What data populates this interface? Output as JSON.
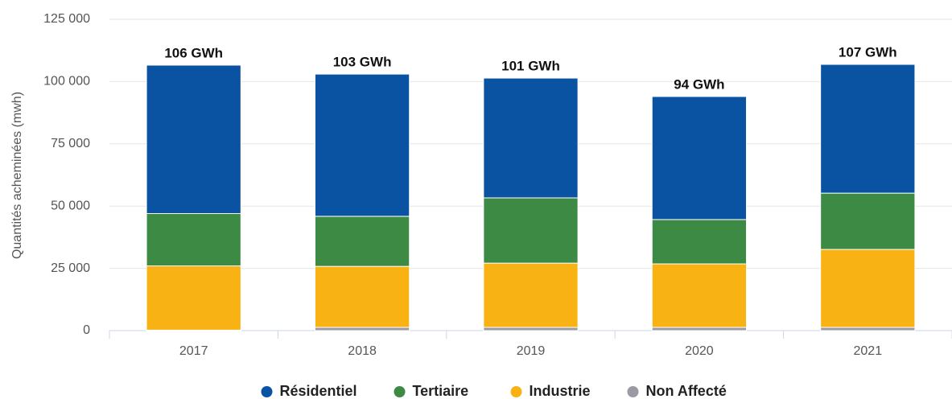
{
  "chart_data": {
    "type": "stacked_bar",
    "ylabel": "Quantités acheminées (mwh)",
    "categories": [
      "2017",
      "2018",
      "2019",
      "2020",
      "2021"
    ],
    "series": [
      {
        "name": "Non Affecté",
        "color": "#9a9aa5",
        "values": [
          200,
          1300,
          1300,
          1300,
          1300
        ]
      },
      {
        "name": "Industrie",
        "color": "#f9b214",
        "values": [
          25800,
          24500,
          25800,
          25500,
          31300
        ]
      },
      {
        "name": "Tertiaire",
        "color": "#3d8a45",
        "values": [
          21000,
          20100,
          26200,
          17800,
          22600
        ]
      },
      {
        "name": "Résidentiel",
        "color": "#0a53a3",
        "values": [
          59600,
          57100,
          48100,
          49400,
          51700
        ]
      }
    ],
    "legend_order": [
      3,
      2,
      1,
      0
    ],
    "total_labels": [
      "106 GWh",
      "103 GWh",
      "101 GWh",
      "94 GWh",
      "107 GWh"
    ],
    "ylim": [
      0,
      125000
    ],
    "yticks": [
      0,
      {
        "value": 25000,
        "label": "25 000"
      },
      {
        "value": 50000,
        "label": "50 000"
      },
      {
        "value": 75000,
        "label": "75 000"
      },
      {
        "value": 100000,
        "label": "100 000"
      },
      {
        "value": 125000,
        "label": "125 000"
      }
    ],
    "grid": true
  }
}
